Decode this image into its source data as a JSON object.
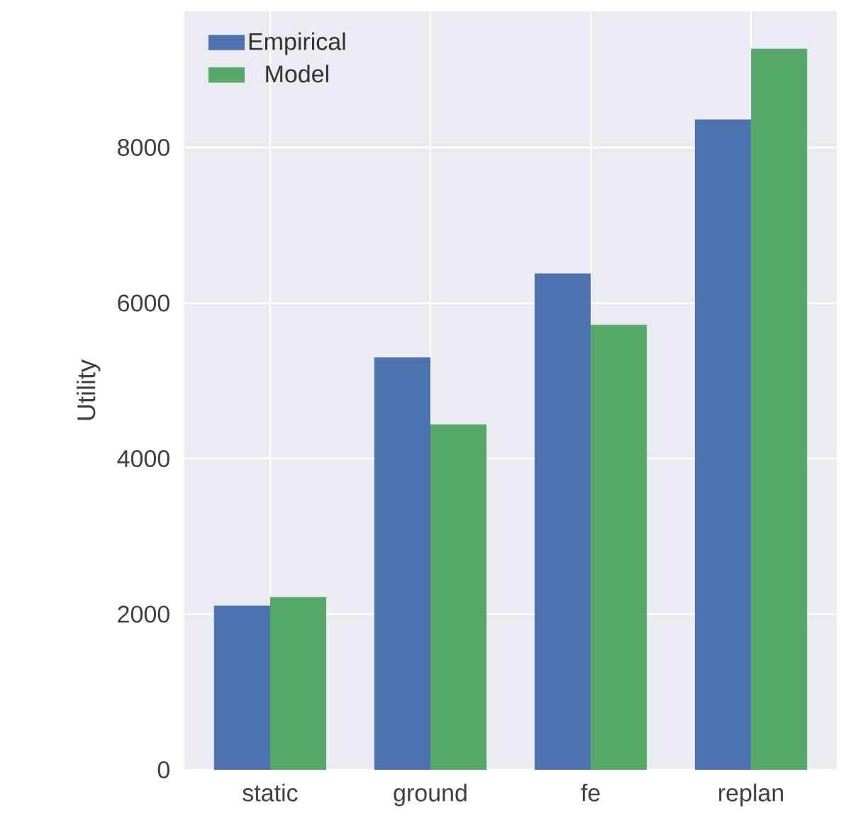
{
  "chart_data": {
    "type": "bar",
    "ylabel": "Utility",
    "categories": [
      "static",
      "ground",
      "fe",
      "replan"
    ],
    "series": [
      {
        "name": "Empirical",
        "color": "#4c72b0",
        "values": [
          2110,
          5300,
          6380,
          8360
        ]
      },
      {
        "name": "Model",
        "color": "#55a868",
        "values": [
          2220,
          4440,
          5720,
          9270
        ]
      }
    ],
    "ylim": [
      0,
      9750
    ],
    "yticks": [
      0,
      2000,
      4000,
      6000,
      8000
    ],
    "grid": true,
    "legend": "top left"
  }
}
